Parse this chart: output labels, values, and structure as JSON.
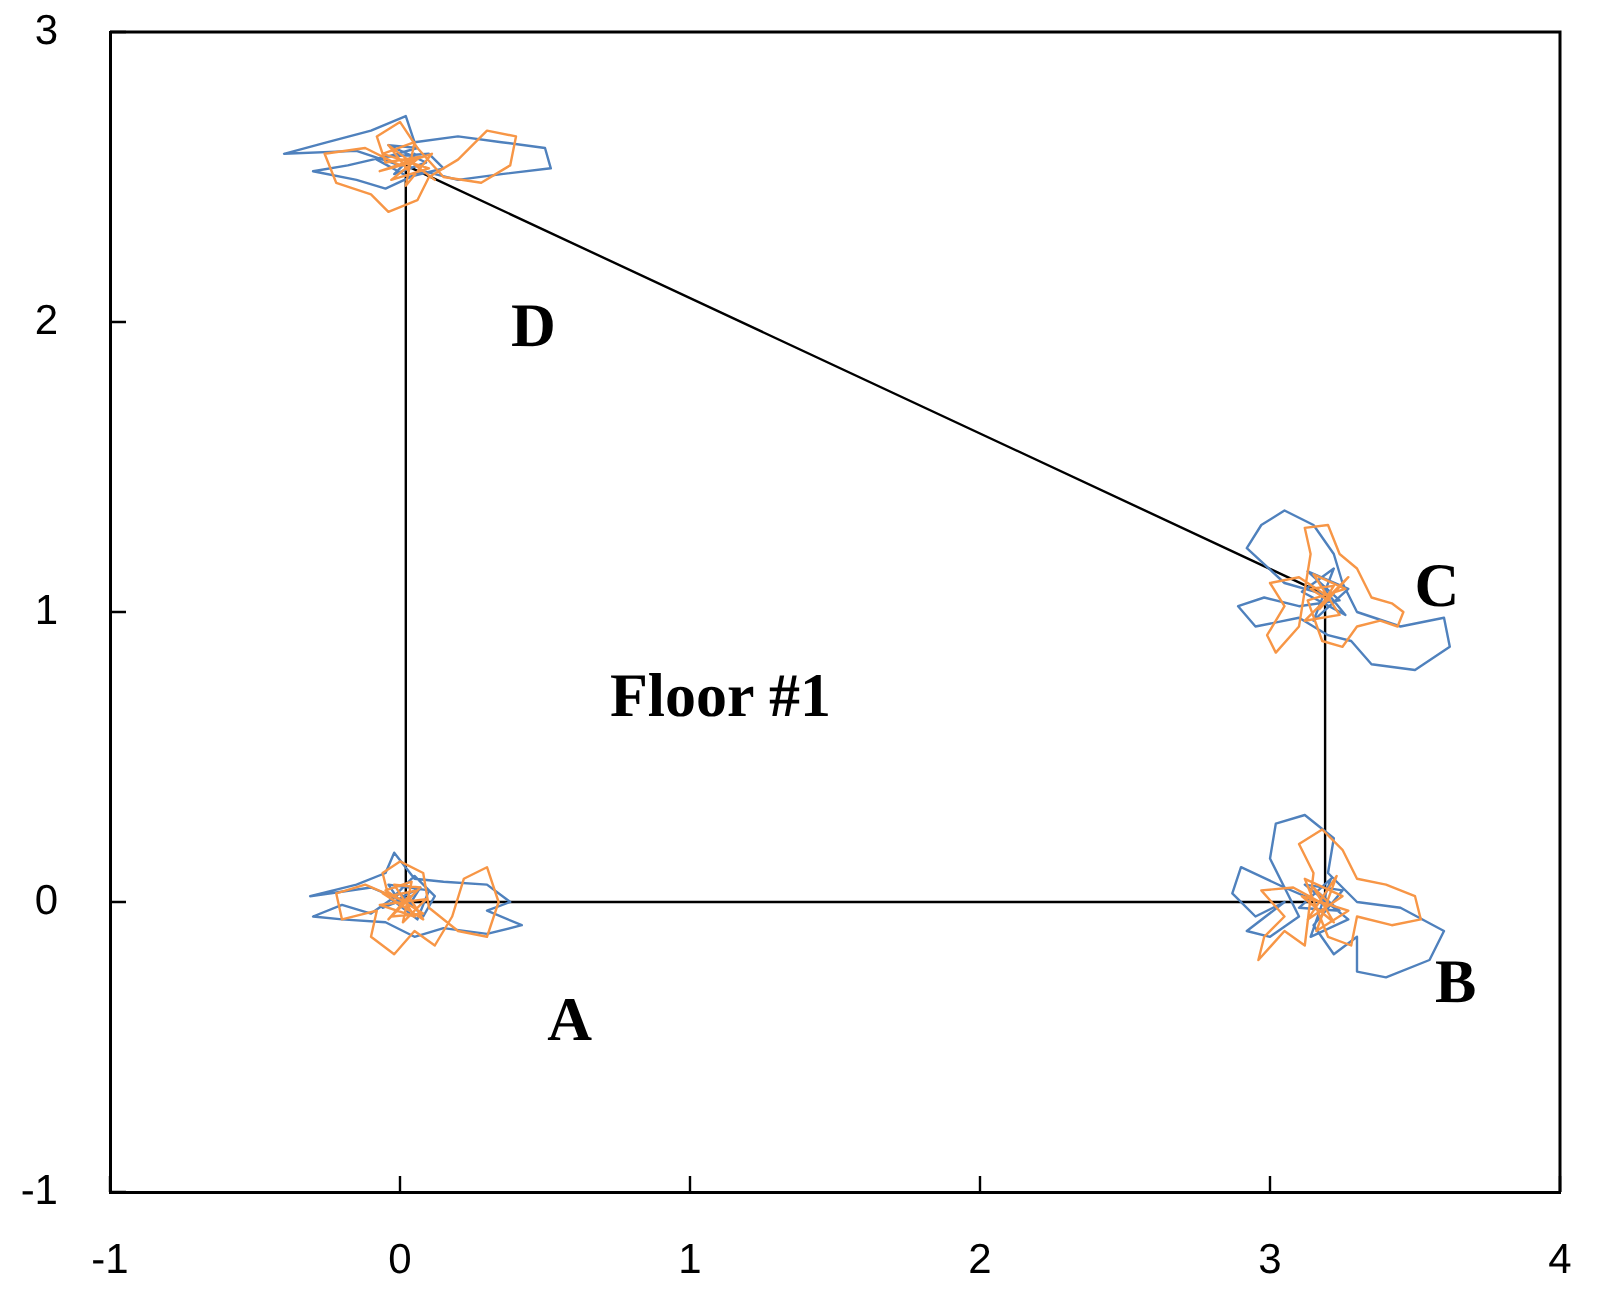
{
  "chart_data": {
    "type": "line",
    "xlim": [
      -1,
      4
    ],
    "ylim": [
      -1,
      3
    ],
    "xticks": [
      -1,
      0,
      1,
      2,
      3,
      4
    ],
    "yticks": [
      -1,
      0,
      1,
      2,
      3
    ],
    "grid": false,
    "legend": false,
    "marker": "none",
    "line_style": "solid",
    "series": [
      {
        "color": "#000000",
        "x": [
          0.02,
          3.19,
          3.19
        ],
        "values": [
          0,
          0,
          1.06
        ]
      },
      {
        "color": "#000000",
        "x": [
          0.02,
          0.02,
          3.19
        ],
        "values": [
          0,
          2.54,
          1.06
        ]
      },
      {
        "color": "#4f81bd",
        "x": [
          0.02,
          -0.1,
          -0.31,
          -0.15,
          -0.05,
          -0.02,
          0.05,
          0.15,
          0.3,
          0.38,
          0.3,
          0.42,
          0.3,
          0.15,
          0.05,
          -0.05,
          -0.2,
          -0.3,
          -0.2,
          -0.1,
          0,
          0.08,
          0.12,
          0.05,
          -0.03,
          0.06,
          0.1,
          -0.04,
          0.02,
          0.07,
          -0.06,
          0.04
        ],
        "values": [
          0,
          0.05,
          0.02,
          0.06,
          0.1,
          0.17,
          0.08,
          0.07,
          0.06,
          0,
          -0.03,
          -0.08,
          -0.11,
          -0.09,
          -0.12,
          -0.07,
          -0.06,
          -0.05,
          -0.01,
          -0.04,
          0.03,
          -0.05,
          0.02,
          0.09,
          0.01,
          -0.06,
          0.04,
          0.06,
          -0.03,
          0.05,
          -0.02,
          0.02
        ]
      },
      {
        "color": "#4f81bd",
        "x": [
          3.19,
          3.05,
          2.9,
          2.87,
          2.95,
          3.05,
          2.92,
          3,
          3.1,
          3,
          3.02,
          3.12,
          3.22,
          3.2,
          3.3,
          3.45,
          3.6,
          3.55,
          3.4,
          3.3,
          3.3,
          3.22,
          3.15,
          3.25,
          3.12,
          3.27,
          3.14,
          3.21,
          3.1,
          3.24,
          3.17
        ],
        "values": [
          -0.01,
          0.05,
          0.12,
          0.03,
          -0.05,
          0,
          -0.1,
          -0.12,
          -0.05,
          0.15,
          0.27,
          0.3,
          0.22,
          0.1,
          0,
          -0.02,
          -0.1,
          -0.2,
          -0.26,
          -0.24,
          -0.12,
          -0.18,
          -0.08,
          0.04,
          0.06,
          -0.06,
          -0.12,
          0.08,
          -0.02,
          -0.03,
          0.03
        ]
      },
      {
        "color": "#4f81bd",
        "x": [
          3.19,
          3.05,
          2.92,
          2.97,
          3.05,
          3.15,
          3.22,
          3.25,
          3.3,
          3.45,
          3.6,
          3.62,
          3.5,
          3.35,
          3.28,
          3.2,
          3.1,
          2.95,
          2.89,
          2.98,
          3.1,
          3.24,
          3.13,
          3.27,
          3.15,
          3.22,
          3.11,
          3.26,
          3.17
        ],
        "values": [
          1.06,
          1.1,
          1.22,
          1.3,
          1.35,
          1.3,
          1.2,
          1.1,
          1,
          0.95,
          0.98,
          0.88,
          0.8,
          0.82,
          0.9,
          0.92,
          0.98,
          0.95,
          1.02,
          1.05,
          1.02,
          1.04,
          1.14,
          1.08,
          0.97,
          1.15,
          1.07,
          0.99,
          1.1
        ]
      },
      {
        "color": "#4f81bd",
        "x": [
          0,
          -0.15,
          -0.4,
          -0.25,
          -0.1,
          0.02,
          0.05,
          0.2,
          0.35,
          0.5,
          0.52,
          0.35,
          0.2,
          0.08,
          -0.05,
          -0.15,
          -0.3,
          -0.18,
          -0.05,
          0.1,
          0.15,
          0.03,
          -0.08,
          0.06,
          -0.04,
          0.09,
          -0.02,
          0.05
        ],
        "values": [
          2.54,
          2.59,
          2.58,
          2.62,
          2.66,
          2.71,
          2.62,
          2.64,
          2.62,
          2.6,
          2.53,
          2.51,
          2.49,
          2.52,
          2.46,
          2.49,
          2.52,
          2.54,
          2.57,
          2.58,
          2.53,
          2.5,
          2.56,
          2.6,
          2.61,
          2.55,
          2.51,
          2.58
        ]
      },
      {
        "color": "#f79646",
        "x": [
          0.02,
          -0.12,
          -0.22,
          -0.2,
          -0.08,
          -0.1,
          -0.02,
          0.05,
          0.12,
          0.18,
          0.22,
          0.3,
          0.34,
          0.3,
          0.2,
          0.1,
          0.08,
          0,
          -0.06,
          -0.04,
          0.06,
          -0.03,
          0.08,
          -0.05,
          0.04,
          0.01,
          0.09,
          -0.07,
          0.05,
          -0.02,
          0.07,
          -0.04,
          0.03,
          0.08,
          -0.06,
          0.02
        ],
        "values": [
          0,
          0.06,
          0.03,
          -0.06,
          -0.03,
          -0.12,
          -0.18,
          -0.1,
          -0.15,
          -0.05,
          0.08,
          0.12,
          0,
          -0.12,
          -0.1,
          -0.02,
          0.1,
          0.14,
          0.1,
          0.02,
          0.04,
          -0.05,
          -0.04,
          0.04,
          0.07,
          -0.07,
          0.01,
          -0.01,
          -0.05,
          0.06,
          0.05,
          -0.06,
          0.02,
          -0.06,
          0.03,
          -0.02
        ]
      },
      {
        "color": "#f79646",
        "x": [
          3.19,
          3.08,
          2.97,
          3.05,
          2.98,
          2.96,
          3.05,
          3.12,
          3.15,
          3.1,
          3.18,
          3.25,
          3.3,
          3.4,
          3.5,
          3.52,
          3.42,
          3.3,
          3.28,
          3.2,
          3.12,
          3.25,
          3.13,
          3.23,
          3.16,
          3.27,
          3.11,
          3.22,
          3.15,
          3.2
        ],
        "values": [
          -0.01,
          0.05,
          0.04,
          -0.05,
          -0.12,
          -0.2,
          -0.1,
          -0.15,
          0.1,
          0.2,
          0.25,
          0.18,
          0.08,
          0.06,
          0.02,
          -0.06,
          -0.08,
          -0.05,
          -0.15,
          -0.12,
          0.08,
          0.02,
          -0.06,
          0.09,
          -0.1,
          -0.03,
          0.02,
          -0.07,
          0.05,
          0
        ]
      },
      {
        "color": "#f79646",
        "x": [
          3.19,
          3.1,
          3,
          3.05,
          2.99,
          3.02,
          3.1,
          3.14,
          3.12,
          3.2,
          3.24,
          3.3,
          3.35,
          3.42,
          3.46,
          3.44,
          3.38,
          3.3,
          3.25,
          3.18,
          3.13,
          3.26,
          3.15,
          3.24,
          3.12,
          3.27,
          3.17,
          3.22,
          3.14,
          3.2
        ],
        "values": [
          1.06,
          1.12,
          1.1,
          1.02,
          0.92,
          0.86,
          0.95,
          1.2,
          1.29,
          1.3,
          1.2,
          1.15,
          1.05,
          1.03,
          1,
          0.95,
          0.97,
          0.95,
          0.88,
          0.9,
          1.04,
          1.08,
          1.13,
          0.99,
          0.97,
          1.12,
          1.01,
          1.09,
          1.08,
          1.04
        ]
      },
      {
        "color": "#f79646",
        "x": [
          0,
          -0.12,
          -0.26,
          -0.22,
          -0.1,
          -0.04,
          0.06,
          0.1,
          0.2,
          0.3,
          0.4,
          0.38,
          0.28,
          0.15,
          0.06,
          0,
          -0.08,
          -0.05,
          0.07,
          -0.03,
          0.1,
          -0.06,
          0.05,
          0.02,
          0.11,
          -0.07,
          0.04,
          0.12,
          -0.04,
          0.03
        ],
        "values": [
          2.54,
          2.6,
          2.58,
          2.48,
          2.44,
          2.38,
          2.42,
          2.5,
          2.56,
          2.66,
          2.64,
          2.54,
          2.48,
          2.5,
          2.6,
          2.69,
          2.64,
          2.55,
          2.57,
          2.49,
          2.53,
          2.58,
          2.62,
          2.47,
          2.58,
          2.52,
          2.55,
          2.49,
          2.61,
          2.52
        ]
      }
    ],
    "annotations": [
      "A",
      "B",
      "C",
      "D",
      "Floor #1"
    ]
  }
}
